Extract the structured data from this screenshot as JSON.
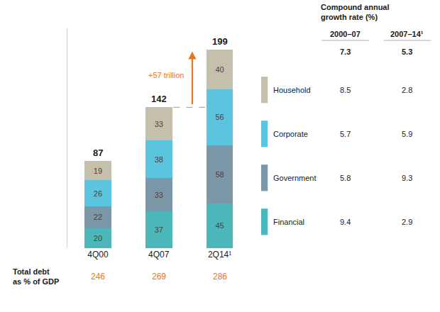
{
  "chart_data": {
    "type": "bar",
    "stacked": true,
    "data_labels": true,
    "tick_labels": "x",
    "grid": false,
    "categories": [
      "4Q00",
      "4Q07",
      "2Q14¹"
    ],
    "series": [
      {
        "name": "Financial",
        "color": "#4cb8bb",
        "values": [
          20,
          37,
          45
        ]
      },
      {
        "name": "Government",
        "color": "#7c97a8",
        "values": [
          22,
          33,
          58
        ]
      },
      {
        "name": "Corporate",
        "color": "#5bc5e0",
        "values": [
          26,
          38,
          56
        ]
      },
      {
        "name": "Household",
        "color": "#c5c0ac",
        "values": [
          19,
          33,
          40
        ]
      }
    ],
    "totals": [
      87,
      142,
      199
    ],
    "ylim": [
      0,
      220
    ],
    "annotation": {
      "text": "+57 trillion",
      "color": "#e87722"
    },
    "gdp": {
      "label": "Total debt\nas % of GDP",
      "values": [
        246,
        269,
        286
      ],
      "color": "#e87722"
    },
    "table": {
      "title": [
        "Compound annual",
        "growth rate (%)"
      ],
      "columns": [
        "2000–07",
        "2007–14¹"
      ],
      "total_row": [
        7.3,
        5.3
      ],
      "rows": [
        {
          "label": "Household",
          "values": [
            8.5,
            2.8
          ]
        },
        {
          "label": "Corporate",
          "values": [
            5.7,
            5.9
          ]
        },
        {
          "label": "Government",
          "values": [
            5.8,
            9.3
          ]
        },
        {
          "label": "Financial",
          "values": [
            9.4,
            2.9
          ]
        }
      ]
    }
  }
}
